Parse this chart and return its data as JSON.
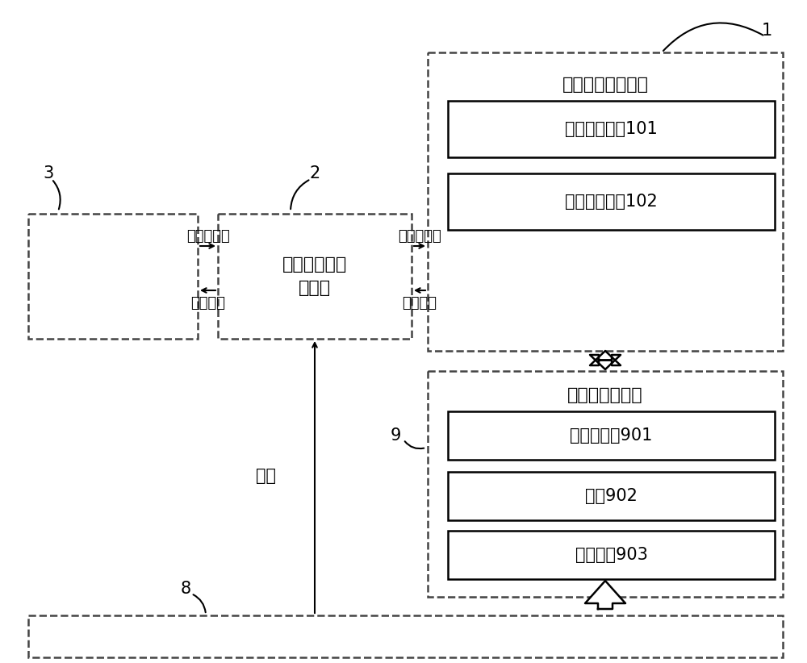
{
  "bg_color": "#ffffff",
  "text_antenna_sys": "分布式天线分系统",
  "text_antenna_101": "线性天线阵列101",
  "text_antenna_102": "线性天线阵列102",
  "text_switch_sys": "高速开关网络\n分系统",
  "text_servo_sys": "伺服运动分系统",
  "text_servo_901": "伺服控制器901",
  "text_motor_902": "电机902",
  "text_drive_903": "传动装置903",
  "text_elec_signal": "电激励信号",
  "text_echo_signal": "回波信号",
  "text_control": "控制",
  "label_1": "1",
  "label_2": "2",
  "label_3": "3",
  "label_8": "8",
  "label_9": "9",
  "figw": 10.0,
  "figh": 8.22,
  "dpi": 100
}
